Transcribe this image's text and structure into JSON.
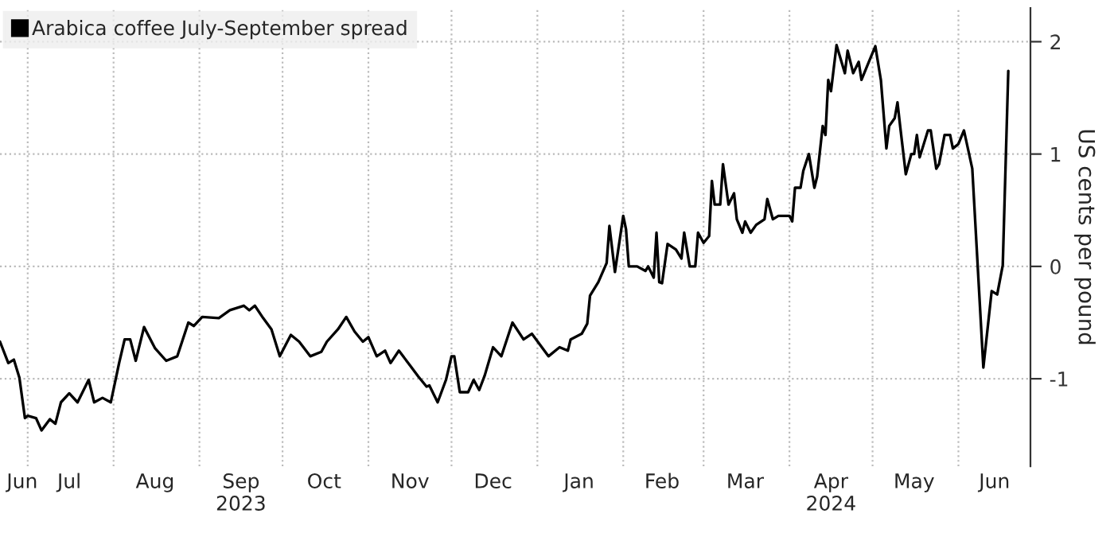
{
  "chart_data": {
    "type": "line",
    "ylabel": "US cents per pound",
    "x": [
      "2023-06-21",
      "2023-06-24",
      "2023-06-26",
      "2023-06-28",
      "2023-06-30",
      "2023-07-01",
      "2023-07-04",
      "2023-07-06",
      "2023-07-09",
      "2023-07-11",
      "2023-07-13",
      "2023-07-16",
      "2023-07-19",
      "2023-07-23",
      "2023-07-25",
      "2023-07-28",
      "2023-07-31",
      "2023-08-03",
      "2023-08-05",
      "2023-08-07",
      "2023-08-09",
      "2023-08-12",
      "2023-08-16",
      "2023-08-20",
      "2023-08-24",
      "2023-08-28",
      "2023-08-30",
      "2023-09-02",
      "2023-09-08",
      "2023-09-12",
      "2023-09-17",
      "2023-09-19",
      "2023-09-21",
      "2023-09-24",
      "2023-09-27",
      "2023-09-30",
      "2023-10-04",
      "2023-10-07",
      "2023-10-11",
      "2023-10-15",
      "2023-10-17",
      "2023-10-21",
      "2023-10-24",
      "2023-10-27",
      "2023-10-30",
      "2023-11-01",
      "2023-11-04",
      "2023-11-07",
      "2023-11-09",
      "2023-11-12",
      "2023-11-16",
      "2023-11-19",
      "2023-11-22",
      "2023-11-23",
      "2023-11-26",
      "2023-11-29",
      "2023-12-01",
      "2023-12-02",
      "2023-12-04",
      "2023-12-07",
      "2023-12-09",
      "2023-12-11",
      "2023-12-13",
      "2023-12-16",
      "2023-12-19",
      "2023-12-23",
      "2023-12-27",
      "2023-12-30",
      "2024-01-05",
      "2024-01-09",
      "2024-01-12",
      "2024-01-13",
      "2024-01-17",
      "2024-01-19",
      "2024-01-20",
      "2024-01-23",
      "2024-01-26",
      "2024-01-27",
      "2024-01-29",
      "2024-02-01",
      "2024-02-02",
      "2024-02-03",
      "2024-02-06",
      "2024-02-09",
      "2024-02-10",
      "2024-02-12",
      "2024-02-13",
      "2024-02-14",
      "2024-02-15",
      "2024-02-17",
      "2024-02-20",
      "2024-02-22",
      "2024-02-23",
      "2024-02-25",
      "2024-02-27",
      "2024-02-28",
      "2024-03-01",
      "2024-03-03",
      "2024-03-04",
      "2024-03-05",
      "2024-03-07",
      "2024-03-08",
      "2024-03-10",
      "2024-03-12",
      "2024-03-13",
      "2024-03-15",
      "2024-03-16",
      "2024-03-18",
      "2024-03-20",
      "2024-03-23",
      "2024-03-24",
      "2024-03-26",
      "2024-03-28",
      "2024-04-01",
      "2024-04-02",
      "2024-04-03",
      "2024-04-05",
      "2024-04-06",
      "2024-04-08",
      "2024-04-10",
      "2024-04-11",
      "2024-04-13",
      "2024-04-14",
      "2024-04-15",
      "2024-04-16",
      "2024-04-18",
      "2024-04-21",
      "2024-04-22",
      "2024-04-24",
      "2024-04-26",
      "2024-04-27",
      "2024-04-29",
      "2024-05-02",
      "2024-05-04",
      "2024-05-06",
      "2024-05-07",
      "2024-05-09",
      "2024-05-10",
      "2024-05-11",
      "2024-05-13",
      "2024-05-15",
      "2024-05-16",
      "2024-05-17",
      "2024-05-18",
      "2024-05-21",
      "2024-05-22",
      "2024-05-24",
      "2024-05-25",
      "2024-05-27",
      "2024-05-29",
      "2024-05-30",
      "2024-06-01",
      "2024-06-03",
      "2024-06-06",
      "2024-06-10",
      "2024-06-13",
      "2024-06-15",
      "2024-06-17",
      "2024-06-19"
    ],
    "series": [
      {
        "name": "Arabica coffee July-September spread",
        "color": "#000000",
        "values": [
          -0.67,
          -0.86,
          -0.83,
          -0.99,
          -1.35,
          -1.33,
          -1.35,
          -1.46,
          -1.36,
          -1.4,
          -1.21,
          -1.13,
          -1.21,
          -1.01,
          -1.21,
          -1.17,
          -1.21,
          -0.86,
          -0.65,
          -0.65,
          -0.84,
          -0.54,
          -0.73,
          -0.84,
          -0.8,
          -0.5,
          -0.53,
          -0.45,
          -0.46,
          -0.39,
          -0.35,
          -0.39,
          -0.35,
          -0.46,
          -0.56,
          -0.8,
          -0.61,
          -0.67,
          -0.8,
          -0.76,
          -0.67,
          -0.56,
          -0.45,
          -0.58,
          -0.67,
          -0.63,
          -0.8,
          -0.75,
          -0.86,
          -0.75,
          -0.88,
          -0.98,
          -1.07,
          -1.06,
          -1.21,
          -1.01,
          -0.8,
          -0.8,
          -1.12,
          -1.12,
          -1.01,
          -1.1,
          -0.97,
          -0.72,
          -0.8,
          -0.5,
          -0.65,
          -0.6,
          -0.8,
          -0.72,
          -0.75,
          -0.65,
          -0.6,
          -0.51,
          -0.26,
          -0.14,
          0.03,
          0.36,
          -0.05,
          0.45,
          0.33,
          0.0,
          0.0,
          -0.04,
          0.0,
          -0.1,
          0.3,
          -0.14,
          -0.15,
          0.2,
          0.15,
          0.07,
          0.3,
          0.0,
          0.0,
          0.3,
          0.21,
          0.27,
          0.76,
          0.55,
          0.55,
          0.91,
          0.55,
          0.65,
          0.42,
          0.3,
          0.4,
          0.3,
          0.37,
          0.42,
          0.6,
          0.42,
          0.45,
          0.45,
          0.4,
          0.7,
          0.7,
          0.85,
          1.0,
          0.7,
          0.8,
          1.25,
          1.17,
          1.66,
          1.56,
          1.97,
          1.72,
          1.92,
          1.72,
          1.82,
          1.66,
          1.78,
          1.96,
          1.66,
          1.05,
          1.25,
          1.32,
          1.46,
          1.24,
          0.82,
          1.0,
          1.0,
          1.17,
          0.97,
          1.21,
          1.21,
          0.87,
          0.91,
          1.17,
          1.17,
          1.05,
          1.09,
          1.21,
          0.87,
          -0.9,
          -0.22,
          -0.25,
          0.01,
          1.74
        ]
      }
    ],
    "xlim": [
      "2023-06-21",
      "2024-06-27"
    ],
    "xticks": [
      {
        "value": "2023-07-01",
        "label": null
      },
      {
        "value": "2023-08-01",
        "label": null
      },
      {
        "value": "2023-09-01",
        "label": null
      },
      {
        "value": "2023-10-01",
        "label": null
      },
      {
        "value": "2023-11-01",
        "label": null
      },
      {
        "value": "2023-12-01",
        "label": null
      },
      {
        "value": "2024-01-01",
        "label": null
      },
      {
        "value": "2024-02-01",
        "label": null
      },
      {
        "value": "2024-03-01",
        "label": null
      },
      {
        "value": "2024-04-01",
        "label": null
      },
      {
        "value": "2024-05-01",
        "label": null
      },
      {
        "value": "2024-06-01",
        "label": null
      },
      {
        "value": "2023-06-29",
        "label": "Jun"
      },
      {
        "value": "2023-07-16",
        "label": "Jul"
      },
      {
        "value": "2023-08-16",
        "label": "Aug"
      },
      {
        "value": "2023-09-16",
        "label": "Sep\n2023"
      },
      {
        "value": "2023-10-16",
        "label": "Oct"
      },
      {
        "value": "2023-11-16",
        "label": "Nov"
      },
      {
        "value": "2023-12-16",
        "label": "Dec"
      },
      {
        "value": "2024-01-16",
        "label": "Jan"
      },
      {
        "value": "2024-02-15",
        "label": "Feb"
      },
      {
        "value": "2024-03-16",
        "label": "Mar"
      },
      {
        "value": "2024-04-16",
        "label": "Apr\n2024"
      },
      {
        "value": "2024-05-16",
        "label": "May"
      },
      {
        "value": "2024-06-14",
        "label": "Jun"
      }
    ],
    "ylim": [
      -1.78,
      2.3
    ],
    "yticks": [
      -1,
      0,
      1,
      2
    ],
    "grid": true,
    "legend": "top left",
    "line_style": "solid",
    "marker": "none"
  }
}
